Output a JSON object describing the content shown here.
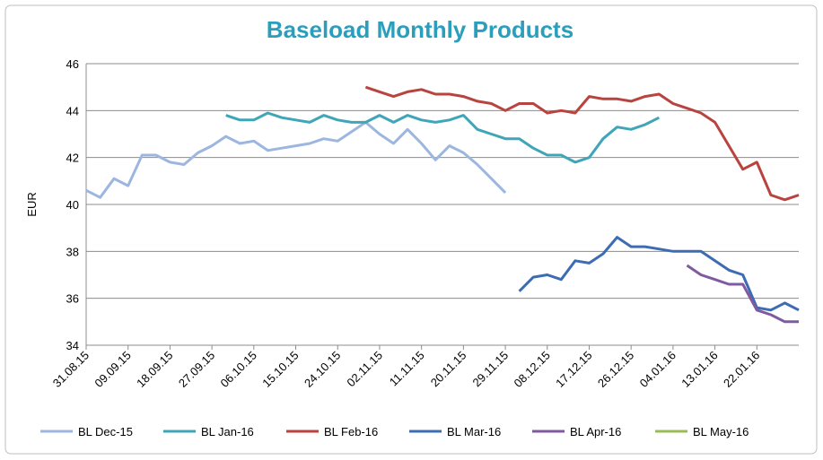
{
  "chart_data": {
    "type": "line",
    "title": "Baseload Monthly Products",
    "y_label": "EUR",
    "categories": [
      "31.08.15",
      null,
      null,
      "09.09.15",
      null,
      null,
      "18.09.15",
      null,
      null,
      "27.09.15",
      null,
      null,
      "06.10.15",
      null,
      null,
      "15.10.15",
      null,
      null,
      "24.10.15",
      null,
      null,
      "02.11.15",
      null,
      null,
      "11.11.15",
      null,
      null,
      "20.11.15",
      null,
      null,
      "29.11.15",
      null,
      null,
      "08.12.15",
      null,
      null,
      "17.12.15",
      null,
      null,
      "26.12.15",
      null,
      null,
      "04.01.16",
      null,
      null,
      "13.01.16",
      null,
      null,
      "22.01.16",
      null,
      null,
      null
    ],
    "series": [
      {
        "name": "BL Dec-15",
        "color": "#9db6df",
        "values": [
          40.6,
          40.3,
          41.1,
          40.8,
          42.1,
          42.1,
          41.8,
          41.7,
          42.2,
          42.5,
          42.9,
          42.6,
          42.7,
          42.3,
          42.4,
          42.5,
          42.6,
          42.8,
          42.7,
          43.1,
          43.5,
          43.0,
          42.6,
          43.2,
          42.6,
          41.9,
          42.5,
          42.2,
          41.7,
          41.1,
          40.5,
          null,
          null,
          null,
          null,
          null,
          null,
          null,
          null,
          null,
          null,
          null,
          null,
          null,
          null,
          null,
          null,
          null,
          null,
          null,
          null,
          null
        ]
      },
      {
        "name": "BL Jan-16",
        "color": "#3fa5b8",
        "values": [
          null,
          null,
          null,
          null,
          null,
          null,
          null,
          null,
          null,
          null,
          43.8,
          43.6,
          43.6,
          43.9,
          43.7,
          43.6,
          43.5,
          43.8,
          43.6,
          43.5,
          43.5,
          43.8,
          43.5,
          43.8,
          43.6,
          43.5,
          43.6,
          43.8,
          43.2,
          43.0,
          42.8,
          42.8,
          42.4,
          42.1,
          42.1,
          41.8,
          42.0,
          42.8,
          43.3,
          43.2,
          43.4,
          43.7,
          null,
          null,
          null,
          null,
          null,
          null,
          null,
          null,
          null,
          null
        ]
      },
      {
        "name": "BL Feb-16",
        "color": "#b9433f",
        "values": [
          null,
          null,
          null,
          null,
          null,
          null,
          null,
          null,
          null,
          null,
          null,
          null,
          null,
          null,
          null,
          null,
          null,
          null,
          null,
          null,
          45.0,
          44.8,
          44.6,
          44.8,
          44.9,
          44.7,
          44.7,
          44.6,
          44.4,
          44.3,
          44.0,
          44.3,
          44.3,
          43.9,
          44.0,
          43.9,
          44.6,
          44.5,
          44.5,
          44.4,
          44.6,
          44.7,
          44.3,
          44.1,
          43.9,
          43.5,
          42.5,
          41.5,
          41.8,
          40.4,
          40.2,
          40.4
        ]
      },
      {
        "name": "BL Mar-16",
        "color": "#3d6cb3",
        "values": [
          null,
          null,
          null,
          null,
          null,
          null,
          null,
          null,
          null,
          null,
          null,
          null,
          null,
          null,
          null,
          null,
          null,
          null,
          null,
          null,
          null,
          null,
          null,
          null,
          null,
          null,
          null,
          null,
          null,
          null,
          null,
          36.3,
          36.9,
          37.0,
          36.8,
          37.6,
          37.5,
          37.9,
          38.6,
          38.2,
          38.2,
          38.1,
          38.0,
          38.0,
          38.0,
          37.6,
          37.2,
          37.0,
          35.6,
          35.5,
          35.8,
          35.5
        ]
      },
      {
        "name": "BL Apr-16",
        "color": "#7f5aa0",
        "values": [
          null,
          null,
          null,
          null,
          null,
          null,
          null,
          null,
          null,
          null,
          null,
          null,
          null,
          null,
          null,
          null,
          null,
          null,
          null,
          null,
          null,
          null,
          null,
          null,
          null,
          null,
          null,
          null,
          null,
          null,
          null,
          null,
          null,
          null,
          null,
          null,
          null,
          null,
          null,
          null,
          null,
          null,
          null,
          37.4,
          37.0,
          36.8,
          36.6,
          36.6,
          35.5,
          35.3,
          35.0,
          35.0
        ]
      },
      {
        "name": "BL May-16",
        "color": "#9bbb59",
        "values": [
          null,
          null,
          null,
          null,
          null,
          null,
          null,
          null,
          null,
          null,
          null,
          null,
          null,
          null,
          null,
          null,
          null,
          null,
          null,
          null,
          null,
          null,
          null,
          null,
          null,
          null,
          null,
          null,
          null,
          null,
          null,
          null,
          null,
          null,
          null,
          null,
          null,
          null,
          null,
          null,
          null,
          null,
          null,
          null,
          null,
          null,
          null,
          null,
          null,
          null,
          null,
          null
        ]
      }
    ],
    "ylim": [
      34,
      46
    ],
    "yticks": [
      34,
      36,
      38,
      40,
      42,
      44,
      46
    ],
    "grid": true,
    "legend": "bottom"
  }
}
